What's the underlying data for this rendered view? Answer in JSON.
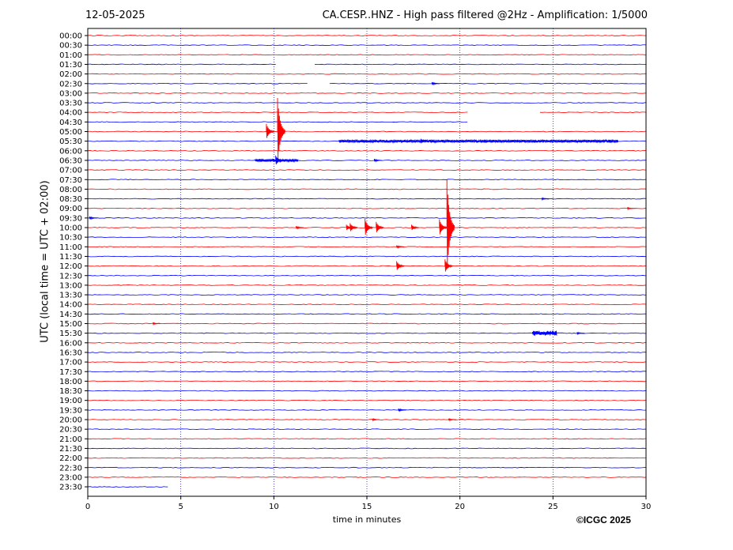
{
  "header": {
    "date": "12-05-2025",
    "title": "CA.CESP..HNZ - High pass filtered @2Hz - Amplification: 1/5000"
  },
  "footer": {
    "copyright": "©ICGC 2025"
  },
  "chart_data": {
    "type": "line",
    "title": "CA.CESP..HNZ - High pass filtered @2Hz - Amplification: 1/5000",
    "xlabel": "time in minutes",
    "ylabel": "UTC (local time = UTC + 02:00)",
    "xlim": [
      0,
      30
    ],
    "x_ticks": [
      0,
      5,
      10,
      15,
      20,
      25,
      30
    ],
    "x_tick_labels": [
      "0",
      "5",
      "10",
      "15",
      "20",
      "25",
      "30"
    ],
    "grid": "dotted vertical lines every 5 minutes",
    "row_labels": [
      "00:00",
      "00:30",
      "01:00",
      "01:30",
      "02:00",
      "02:30",
      "03:00",
      "03:30",
      "04:00",
      "04:30",
      "05:00",
      "05:30",
      "06:00",
      "06:30",
      "07:00",
      "07:30",
      "08:00",
      "08:30",
      "09:00",
      "09:30",
      "10:00",
      "10:30",
      "11:00",
      "11:30",
      "12:00",
      "12:30",
      "13:00",
      "13:30",
      "14:00",
      "14:30",
      "15:00",
      "15:30",
      "16:00",
      "16:30",
      "17:00",
      "17:30",
      "18:00",
      "18:30",
      "19:00",
      "19:30",
      "20:00",
      "20:30",
      "21:00",
      "21:30",
      "22:00",
      "22:30",
      "23:00",
      "23:30"
    ],
    "trace_colors": [
      "#ff0000",
      "#0000ff"
    ],
    "gaps": [
      {
        "row": "01:30",
        "from": 10.1,
        "to": 12.2
      },
      {
        "row": "02:30",
        "from": 11.8,
        "to": 13.0
      },
      {
        "row": "04:00",
        "from": 20.4,
        "to": 24.3
      },
      {
        "row": "04:30",
        "from": 20.4,
        "to": 30
      }
    ],
    "trace_end": {
      "row": "23:30",
      "minute": 4.3
    },
    "events": [
      {
        "row": "02:30",
        "minute": 18.5,
        "amp": 0.3
      },
      {
        "row": "05:00",
        "minute": 9.6,
        "amp": 1.6
      },
      {
        "row": "05:00",
        "minute": 10.2,
        "amp": 7.0
      },
      {
        "row": "05:30",
        "minute": 13.5,
        "amp": 0.3,
        "duration": 15.0
      },
      {
        "row": "05:30",
        "minute": 17.9,
        "amp": 0.5
      },
      {
        "row": "05:30",
        "minute": 18.4,
        "amp": 0.3
      },
      {
        "row": "05:30",
        "minute": 21.3,
        "amp": 0.3
      },
      {
        "row": "05:30",
        "minute": 28.0,
        "amp": 0.3
      },
      {
        "row": "06:30",
        "minute": 9.0,
        "amp": 0.3,
        "duration": 2.3
      },
      {
        "row": "06:30",
        "minute": 10.1,
        "amp": 1.0
      },
      {
        "row": "06:30",
        "minute": 15.4,
        "amp": 0.3
      },
      {
        "row": "08:30",
        "minute": 24.4,
        "amp": 0.2
      },
      {
        "row": "09:00",
        "minute": 29.0,
        "amp": 0.2
      },
      {
        "row": "09:30",
        "minute": 0.1,
        "amp": 0.3
      },
      {
        "row": "10:00",
        "minute": 11.2,
        "amp": 0.3
      },
      {
        "row": "10:00",
        "minute": 13.9,
        "amp": 0.6
      },
      {
        "row": "10:00",
        "minute": 14.1,
        "amp": 0.9
      },
      {
        "row": "10:00",
        "minute": 14.9,
        "amp": 1.8
      },
      {
        "row": "10:00",
        "minute": 15.5,
        "amp": 1.2
      },
      {
        "row": "10:00",
        "minute": 17.4,
        "amp": 0.6
      },
      {
        "row": "10:00",
        "minute": 18.9,
        "amp": 1.7
      },
      {
        "row": "10:00",
        "minute": 19.3,
        "amp": 10.0
      },
      {
        "row": "11:00",
        "minute": 16.6,
        "amp": 0.3
      },
      {
        "row": "12:00",
        "minute": 16.6,
        "amp": 1.0
      },
      {
        "row": "12:00",
        "minute": 19.2,
        "amp": 1.4
      },
      {
        "row": "15:00",
        "minute": 3.5,
        "amp": 0.2
      },
      {
        "row": "15:30",
        "minute": 23.9,
        "amp": 0.5,
        "duration": 1.3
      },
      {
        "row": "15:30",
        "minute": 26.3,
        "amp": 0.2
      },
      {
        "row": "19:30",
        "minute": 16.7,
        "amp": 0.3
      },
      {
        "row": "20:00",
        "minute": 15.3,
        "amp": 0.2
      },
      {
        "row": "20:00",
        "minute": 19.4,
        "amp": 0.2
      }
    ]
  }
}
